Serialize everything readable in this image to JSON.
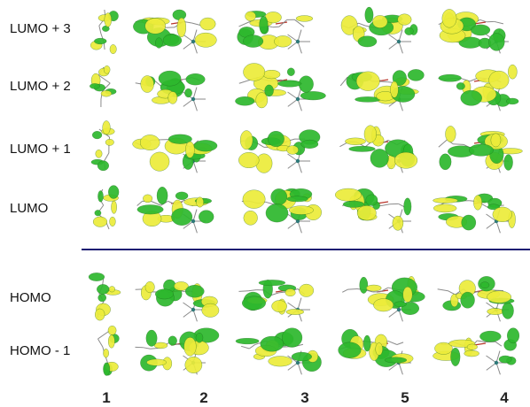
{
  "rows": [
    {
      "label": "LUMO + 3"
    },
    {
      "label": "LUMO + 2"
    },
    {
      "label": "LUMO + 1"
    },
    {
      "label": "LUMO"
    },
    {
      "label": "HOMO"
    },
    {
      "label": "HOMO - 1"
    }
  ],
  "columns": [
    {
      "label": "1"
    },
    {
      "label": "2"
    },
    {
      "label": "3"
    },
    {
      "label": "5"
    },
    {
      "label": "4"
    }
  ],
  "colors": {
    "lobe_positive": "#2db82d",
    "lobe_negative": "#ecec3a",
    "divider": "#1c1c72",
    "bond": "#8a8a8a",
    "metal": "#2f7a7a",
    "linker": "#b8342a"
  }
}
